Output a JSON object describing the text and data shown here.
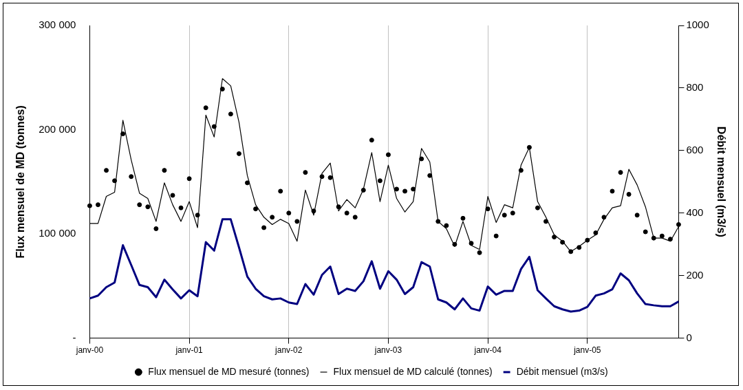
{
  "chart_data": {
    "type": "line",
    "ylabel": "Flux mensuel de MD (tonnes)",
    "y2label": "Débit mensuel (m3/s)",
    "categories": [
      "janv-00",
      null,
      null,
      null,
      null,
      null,
      null,
      null,
      null,
      null,
      null,
      null,
      "janv-01",
      null,
      null,
      null,
      null,
      null,
      null,
      null,
      null,
      null,
      null,
      null,
      "janv-02",
      null,
      null,
      null,
      null,
      null,
      null,
      null,
      null,
      null,
      null,
      null,
      "janv-03",
      null,
      null,
      null,
      null,
      null,
      null,
      null,
      null,
      null,
      null,
      null,
      "janv-04",
      null,
      null,
      null,
      null,
      null,
      null,
      null,
      null,
      null,
      null,
      null,
      "janv-05",
      null,
      null,
      null,
      null,
      null,
      null,
      null,
      null,
      null,
      null,
      null
    ],
    "series": [
      {
        "name": "Flux mensuel de MD mesuré (tonnes)",
        "type": "scatter",
        "marker": "circle",
        "color": "#000000",
        "values": [
          127000,
          128000,
          161000,
          151000,
          196000,
          155000,
          128000,
          126000,
          105000,
          161000,
          137000,
          125000,
          153000,
          118000,
          221000,
          203000,
          239000,
          215000,
          177000,
          149000,
          124000,
          106000,
          116000,
          141000,
          120000,
          112000,
          159000,
          122000,
          155000,
          154000,
          126000,
          120000,
          116000,
          142000,
          190000,
          151000,
          176000,
          143000,
          141000,
          143000,
          172000,
          156000,
          112000,
          108000,
          90000,
          115000,
          91000,
          82000,
          124000,
          98000,
          118000,
          120000,
          161000,
          183000,
          125000,
          112000,
          97000,
          92000,
          83000,
          87000,
          94000,
          101000,
          116000,
          141000,
          159000,
          138000,
          118000,
          102000,
          96000,
          98000,
          95000,
          109000
        ]
      },
      {
        "name": "Flux mensuel de MD calculé (tonnes)",
        "color": "#000000",
        "values": [
          110000,
          110000,
          136000,
          140000,
          209000,
          171000,
          139000,
          134000,
          112000,
          149000,
          128000,
          112000,
          131000,
          106000,
          214000,
          193000,
          249000,
          242000,
          207000,
          156000,
          128000,
          116000,
          109000,
          114000,
          110000,
          93000,
          142000,
          118000,
          158000,
          168000,
          122000,
          133000,
          125000,
          143000,
          178000,
          131000,
          166000,
          134000,
          121000,
          131000,
          182000,
          169000,
          112000,
          105000,
          88000,
          112000,
          89000,
          85000,
          136000,
          111000,
          128000,
          125000,
          166000,
          183000,
          131000,
          116000,
          99000,
          93000,
          83000,
          88000,
          94000,
          99000,
          114000,
          125000,
          127000,
          162000,
          147000,
          126000,
          96000,
          96000,
          93000,
          107000
        ]
      },
      {
        "name": "Débit mensuel (m3/s)",
        "axis": "y2",
        "color": "#000080",
        "values": [
          127,
          136,
          163,
          178,
          297,
          234,
          170,
          163,
          131,
          187,
          156,
          127,
          153,
          134,
          307,
          280,
          380,
          380,
          290,
          197,
          158,
          134,
          124,
          127,
          114,
          109,
          173,
          139,
          202,
          229,
          141,
          158,
          151,
          182,
          246,
          158,
          214,
          187,
          141,
          163,
          243,
          229,
          124,
          114,
          92,
          127,
          95,
          88,
          165,
          139,
          151,
          151,
          221,
          260,
          153,
          127,
          102,
          92,
          85,
          88,
          100,
          136,
          143,
          156,
          207,
          185,
          143,
          109,
          105,
          102,
          102,
          117
        ]
      }
    ],
    "ylim": [
      0,
      300000
    ],
    "yticks": [
      {
        "value": 0,
        "label": "-"
      },
      {
        "value": 100000,
        "label": "100 000"
      },
      {
        "value": 200000,
        "label": "200 000"
      },
      {
        "value": 300000,
        "label": "300 000"
      }
    ],
    "y2lim": [
      0,
      1000
    ],
    "y2ticks": [
      0,
      200,
      400,
      600,
      800,
      1000
    ],
    "grid": "x",
    "legend": "bottom"
  }
}
